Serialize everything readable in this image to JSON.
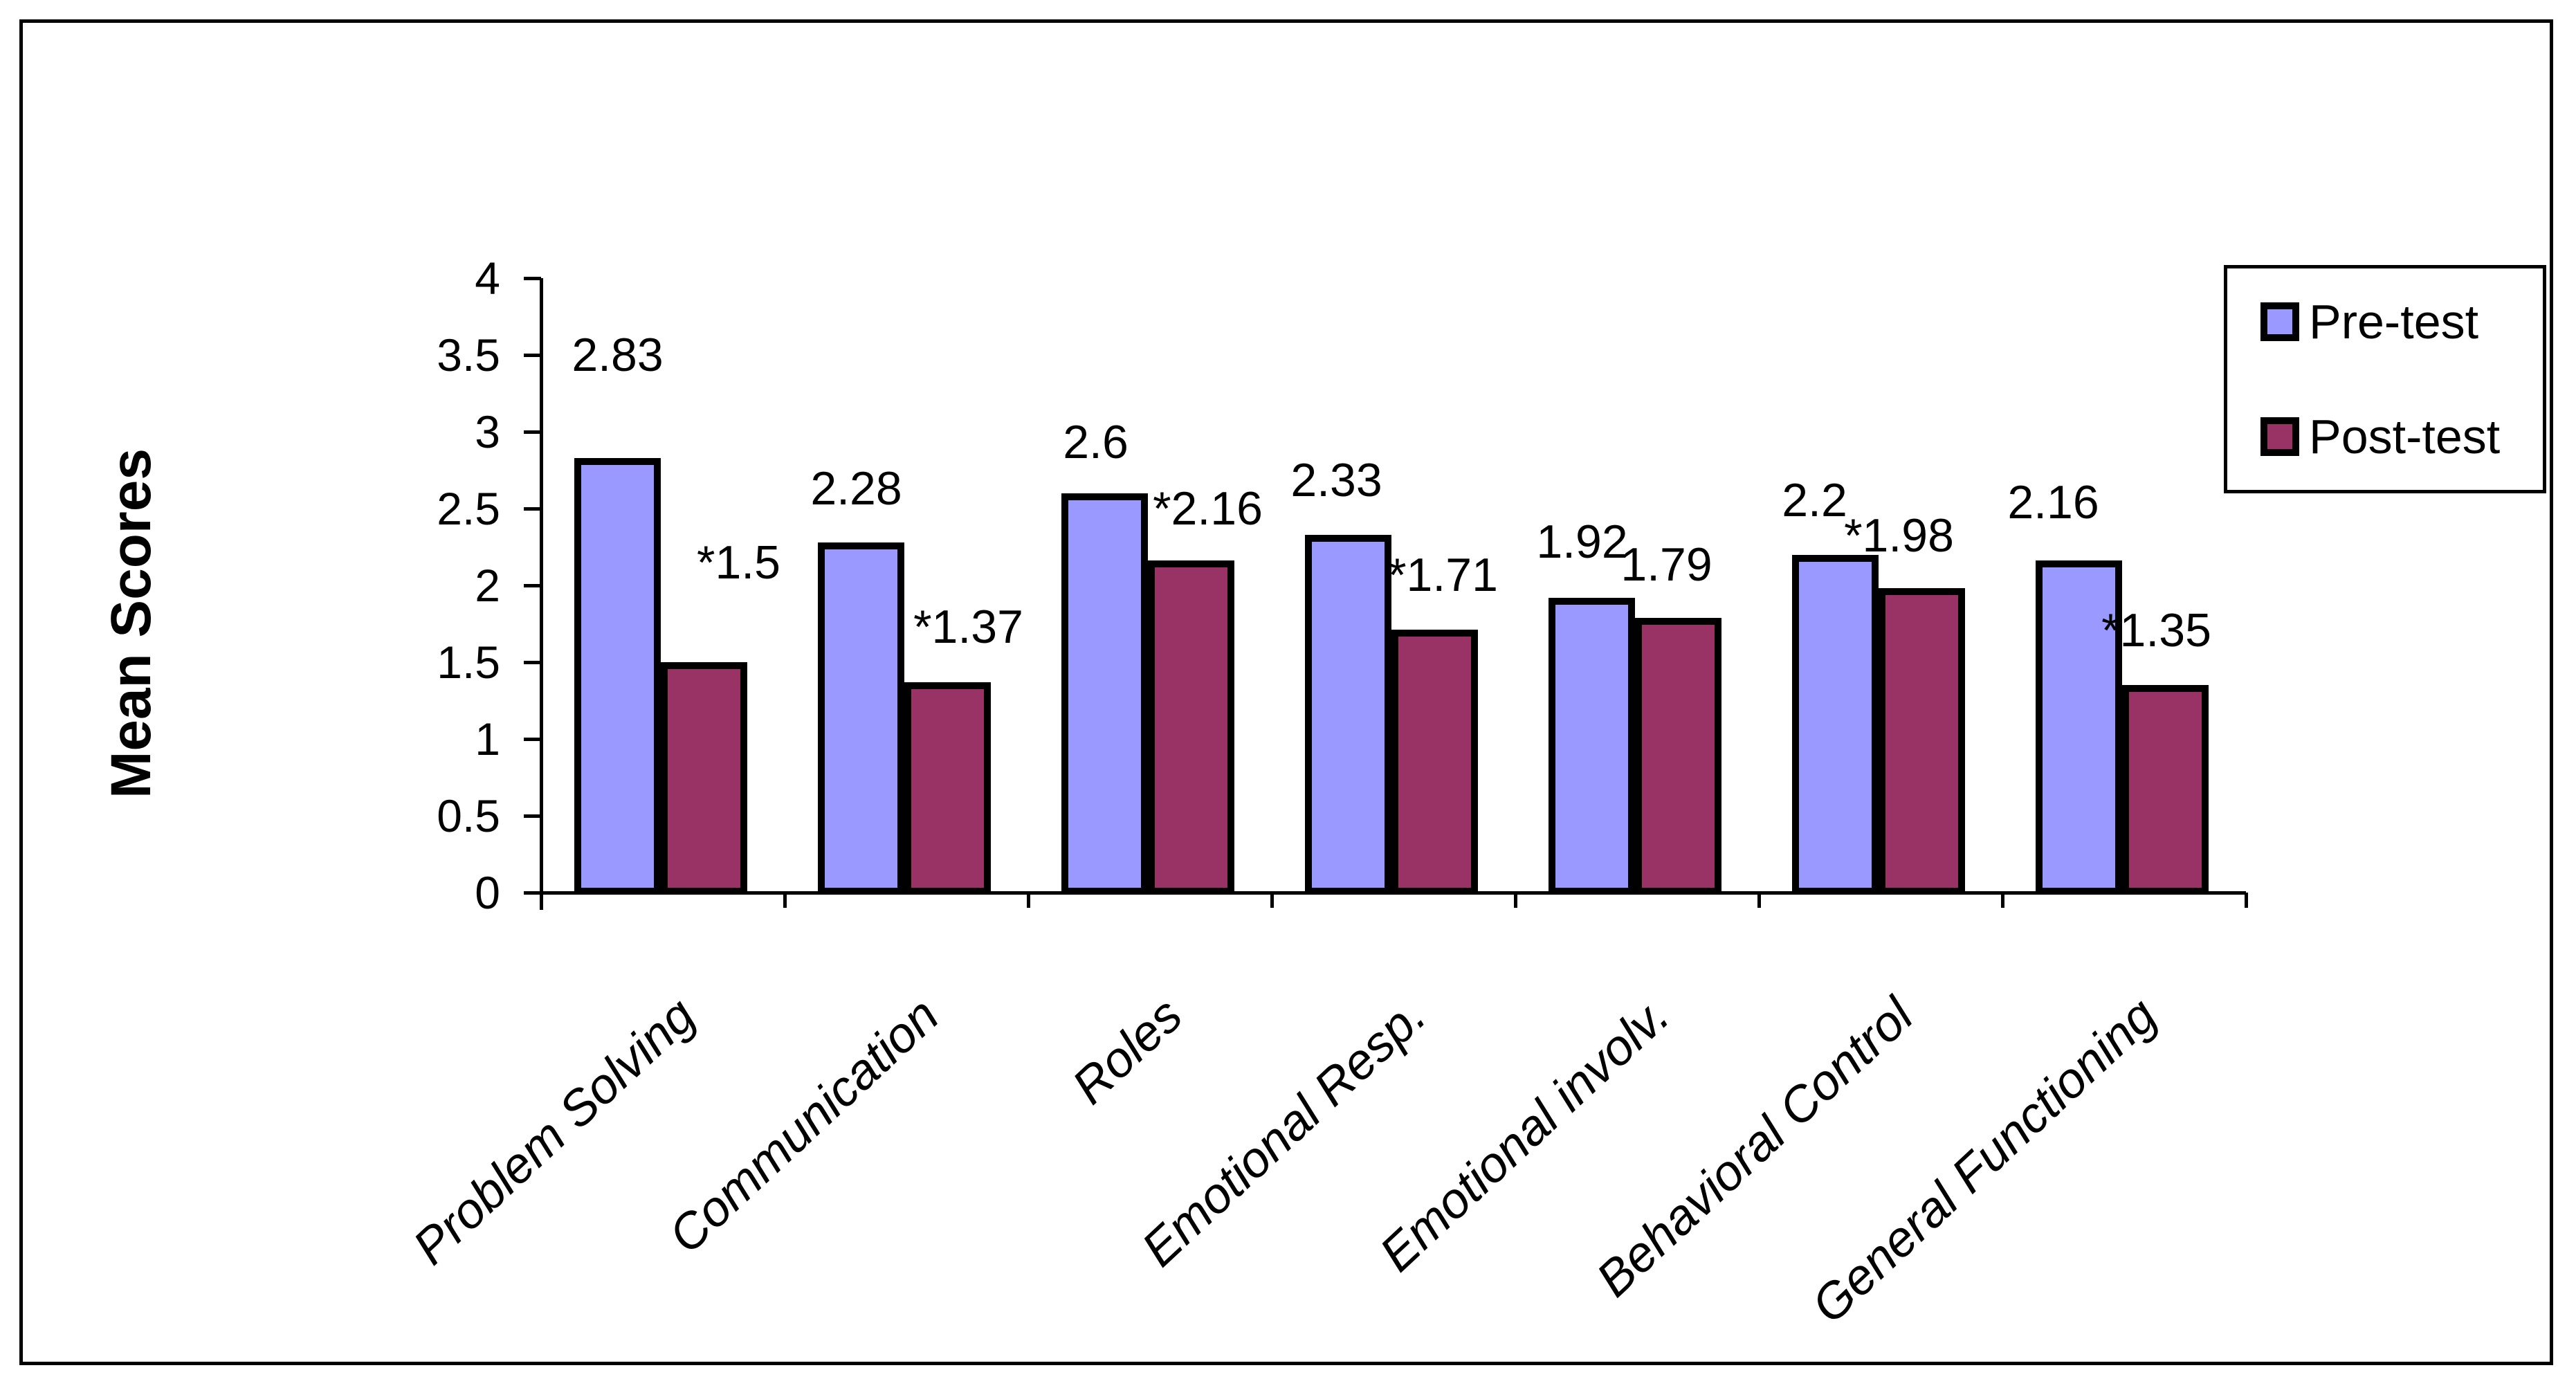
{
  "chart_data": {
    "type": "bar",
    "title": "",
    "xlabel": "",
    "ylabel": "Mean Scores",
    "categories": [
      "Problem Solving",
      "Communication",
      "Roles",
      "Emotional Resp.",
      "Emotional involv.",
      "Behavioral Control",
      "General Functioning"
    ],
    "series": [
      {
        "name": "Pre-test",
        "color": "#9999FF",
        "values": [
          2.83,
          2.28,
          2.6,
          2.33,
          1.92,
          2.2,
          2.16
        ],
        "data_labels": [
          "2.83",
          "2.28",
          "2.6",
          "2.33",
          "1.92",
          "2.2",
          "2.16"
        ]
      },
      {
        "name": "Post-test",
        "color": "#993366",
        "values": [
          1.5,
          1.37,
          2.16,
          1.71,
          1.79,
          1.98,
          1.35
        ],
        "data_labels": [
          "*1.5",
          "*1.37",
          "*2.16",
          "*1.71",
          "1.79",
          "*1.98",
          "*1.35"
        ]
      }
    ],
    "ylim": [
      0,
      4
    ],
    "ytick_step": 0.5,
    "ytick_labels": [
      "0",
      "0.5",
      "1",
      "1.5",
      "2",
      "2.5",
      "3",
      "3.5",
      "4"
    ],
    "grid": false,
    "legend_position": "top-right",
    "bar_border_color": "#000000",
    "plot_background": "#FFFFFF"
  }
}
